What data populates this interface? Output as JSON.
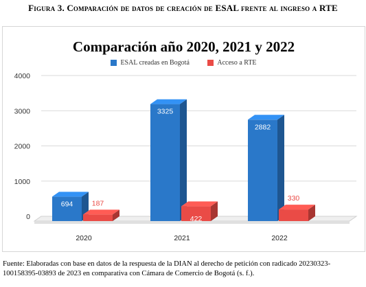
{
  "figure": {
    "caption": "Figura 3. Comparación de datos de creación de ESAL frente al ingreso a RTE",
    "source_line1": "Fuente: Elaboradas con base en datos de la respuesta de la DIAN al derecho de petición con radicado 20230323-",
    "source_line2": "100158395-03893 de 2023 en comparativa con Cámara de Comercio de Bogotá (s. f.)."
  },
  "chart_data": {
    "type": "bar",
    "title": "Comparación año 2020, 2021 y 2022",
    "categories": [
      "2020",
      "2021",
      "2022"
    ],
    "series": [
      {
        "name": "ESAL creadas en Bogotá",
        "values": [
          694,
          3325,
          2882
        ],
        "color": "#2a78c9"
      },
      {
        "name": "Acceso a RTE",
        "values": [
          187,
          422,
          330
        ],
        "color": "#ea4b46"
      }
    ],
    "yticks": [
      "0",
      "1000",
      "2000",
      "3000",
      "4000"
    ],
    "ylim": [
      0,
      4000
    ],
    "grid": true,
    "legend_position": "top",
    "style": "3d-bars"
  }
}
